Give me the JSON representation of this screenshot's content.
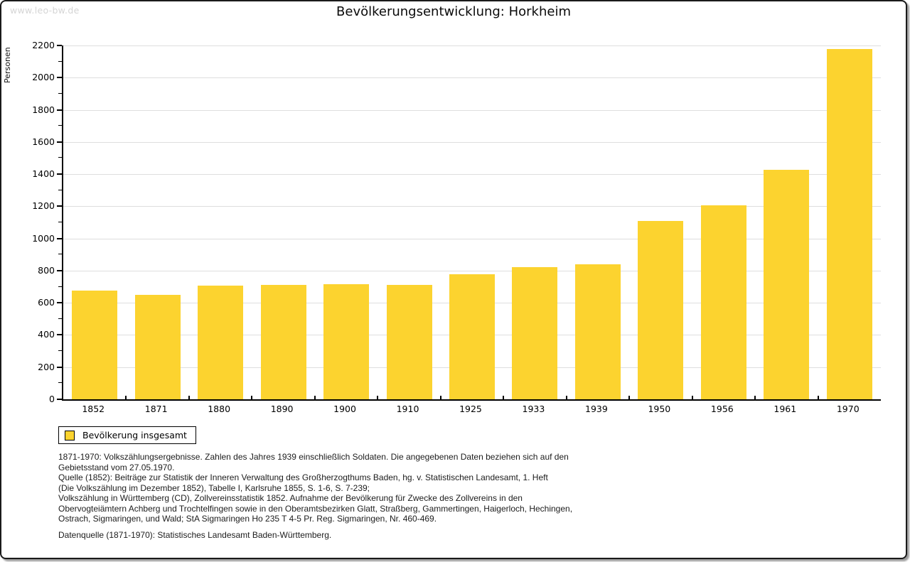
{
  "watermark": "www.leo-bw.de",
  "title": "Bevölkerungsentwicklung: Horkheim",
  "chart_data": {
    "type": "bar",
    "title": "Bevölkerungsentwicklung: Horkheim",
    "xlabel": "",
    "ylabel": "Personen",
    "categories": [
      "1852",
      "1871",
      "1880",
      "1890",
      "1900",
      "1910",
      "1925",
      "1933",
      "1939",
      "1950",
      "1956",
      "1961",
      "1970"
    ],
    "values": [
      676,
      648,
      707,
      711,
      716,
      711,
      776,
      822,
      840,
      1108,
      1206,
      1428,
      2176
    ],
    "ylim": [
      0,
      2200
    ],
    "ytick_step": 200,
    "ytick_labels": [
      "0",
      "200",
      "400",
      "600",
      "800",
      "1000",
      "1200",
      "1400",
      "1600",
      "1800",
      "2000",
      "2200"
    ],
    "minor_tick_step": 100,
    "grid": true,
    "legend_position": "bottom-left",
    "series_name": "Bevölkerung insgesamt"
  },
  "colors": {
    "bar": "#FCD32F",
    "gridline": "#DEDEDE",
    "axis": "#000000",
    "watermark": "#D5D5D5"
  },
  "legend": {
    "label": "Bevölkerung insgesamt"
  },
  "footnotes": {
    "lines": [
      "1871-1970: Volkszählungsergebnisse. Zahlen des Jahres 1939 einschließlich Soldaten. Die angegebenen Daten beziehen sich auf den",
      "Gebietsstand vom 27.05.1970.",
      "Quelle (1852): Beiträge zur Statistik der Inneren Verwaltung des Großherzogthums Baden, hg. v. Statistischen Landesamt, 1. Heft",
      "(Die Volkszählung im Dezember 1852), Tabelle I, Karlsruhe 1855, S. 1-6, S. 7-239;",
      "Volkszählung in Württemberg (CD), Zollvereinsstatistik 1852. Aufnahme der Bevölkerung für Zwecke des Zollvereins in den",
      "Obervogteiämtern Achberg und Trochtelfingen sowie in den Oberamtsbezirken Glatt, Straßberg, Gammertingen, Haigerloch, Hechingen,",
      "Ostrach, Sigmaringen, und Wald; StA Sigmaringen Ho 235 T 4-5 Pr. Reg. Sigmaringen, Nr. 460-469."
    ],
    "datasource": "Datenquelle (1871-1970): Statistisches Landesamt Baden-Württemberg."
  }
}
